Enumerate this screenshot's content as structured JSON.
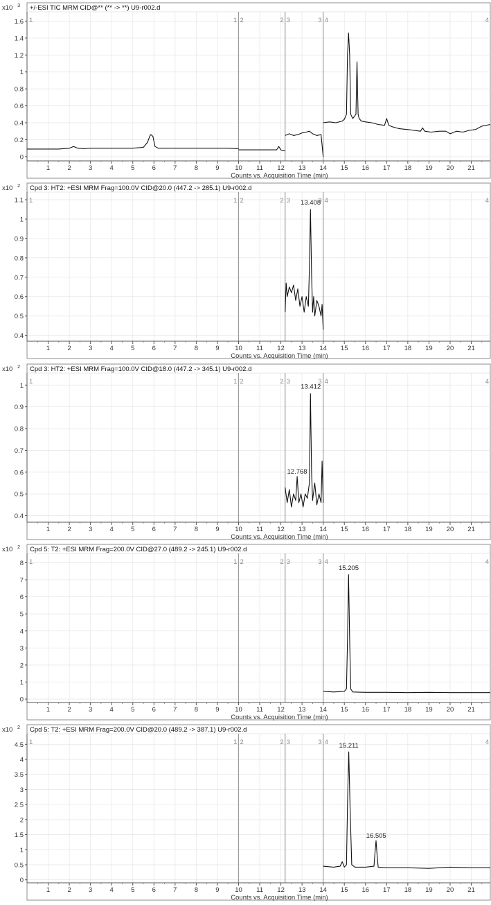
{
  "chart_data": [
    {
      "type": "line",
      "title": "+/-ESI TIC MRM CID@** (** -> **) U9-r002.d",
      "multiplier": "x10",
      "exponent": "3",
      "xlabel": "Counts vs. Acquisition Time (min)",
      "ylabel": "",
      "xlim": [
        0,
        21.9
      ],
      "ylim": [
        -0.05,
        1.62
      ],
      "x_ticks": [
        1,
        2,
        3,
        4,
        5,
        6,
        7,
        8,
        9,
        10,
        11,
        12,
        13,
        14,
        15,
        16,
        17,
        18,
        19,
        20,
        21
      ],
      "x_tick_labels": [
        "1",
        "2",
        "3",
        "4",
        "5",
        "6",
        "7",
        "8",
        "9",
        "10",
        "11",
        "12",
        "13",
        "14",
        "15",
        "16",
        "17",
        "18",
        "19",
        "20",
        "21"
      ],
      "y_ticks": [
        0,
        0.2,
        0.4,
        0.6,
        0.8,
        1,
        1.2,
        1.4,
        1.6
      ],
      "y_tick_labels": [
        "0",
        "0.2",
        "0.4",
        "0.6",
        "0.8",
        "1",
        "1.2",
        "1.4",
        "1.6"
      ],
      "segments": [
        {
          "x": 10.0,
          "left": "1",
          "right": "2"
        },
        {
          "x": 12.2,
          "left": "2",
          "right": "3"
        },
        {
          "x": 14.0,
          "left": "3",
          "right": "4"
        }
      ],
      "edge_labels": {
        "left": "1",
        "right": "4"
      },
      "peak_labels": [],
      "series": [
        {
          "x": [
            0.0,
            1.0,
            1.5,
            2.0,
            2.2,
            2.4,
            2.7,
            3.0,
            4.0,
            5.0,
            5.5,
            5.7,
            5.8,
            5.85,
            5.95,
            6.05,
            6.2,
            6.5,
            7.0,
            7.5,
            8.0,
            8.5,
            9.0,
            9.5,
            10.0
          ],
          "y": [
            0.09,
            0.09,
            0.09,
            0.1,
            0.12,
            0.1,
            0.095,
            0.1,
            0.1,
            0.1,
            0.11,
            0.17,
            0.24,
            0.26,
            0.24,
            0.12,
            0.1,
            0.1,
            0.1,
            0.1,
            0.1,
            0.1,
            0.1,
            0.1,
            0.095
          ]
        },
        {
          "x": [
            10.0,
            10.5,
            11.0,
            11.5,
            11.8,
            11.9,
            12.0,
            12.1,
            12.2
          ],
          "y": [
            0.08,
            0.08,
            0.08,
            0.08,
            0.08,
            0.12,
            0.08,
            0.07,
            0.07
          ]
        },
        {
          "x": [
            12.2,
            12.4,
            12.6,
            12.8,
            13.0,
            13.2,
            13.35,
            13.5,
            13.7,
            13.9,
            14.0
          ],
          "y": [
            0.25,
            0.27,
            0.25,
            0.26,
            0.28,
            0.29,
            0.3,
            0.27,
            0.25,
            0.26,
            0.0
          ]
        },
        {
          "x": [
            14.0,
            14.3,
            14.6,
            14.9,
            15.0,
            15.1,
            15.15,
            15.2,
            15.25,
            15.3,
            15.4,
            15.55,
            15.6,
            15.65,
            15.7,
            15.8,
            16.0,
            16.3,
            16.6,
            16.9,
            17.0,
            17.1,
            17.3,
            17.6,
            18.0,
            18.3,
            18.6,
            18.7,
            18.8,
            19.1,
            19.5,
            19.8,
            20.0,
            20.3,
            20.6,
            20.9,
            21.2,
            21.5,
            21.9
          ],
          "y": [
            0.4,
            0.41,
            0.4,
            0.42,
            0.44,
            0.5,
            1.2,
            1.46,
            1.2,
            0.5,
            0.45,
            0.5,
            1.12,
            0.5,
            0.45,
            0.42,
            0.41,
            0.4,
            0.38,
            0.37,
            0.45,
            0.37,
            0.35,
            0.33,
            0.32,
            0.31,
            0.3,
            0.34,
            0.3,
            0.29,
            0.3,
            0.3,
            0.27,
            0.3,
            0.29,
            0.31,
            0.32,
            0.36,
            0.38
          ]
        }
      ]
    },
    {
      "type": "line",
      "title": "Cpd 3: HT2: +ESI MRM Frag=100.0V CID@20.0 (447.2 -> 285.1) U9-r002.d",
      "multiplier": "x10",
      "exponent": "2",
      "xlabel": "Counts vs. Acquisition Time (min)",
      "ylabel": "",
      "xlim": [
        0,
        21.9
      ],
      "ylim": [
        0.37,
        1.1
      ],
      "x_ticks": [
        1,
        2,
        3,
        4,
        5,
        6,
        7,
        8,
        9,
        10,
        11,
        12,
        13,
        14,
        15,
        16,
        17,
        18,
        19,
        20,
        21
      ],
      "x_tick_labels": [
        "1",
        "2",
        "3",
        "4",
        "5",
        "6",
        "7",
        "8",
        "9",
        "10",
        "11",
        "12",
        "13",
        "14",
        "15",
        "16",
        "17",
        "18",
        "19",
        "20",
        "21"
      ],
      "y_ticks": [
        0.4,
        0.5,
        0.6,
        0.7,
        0.8,
        0.9,
        1,
        1.1
      ],
      "y_tick_labels": [
        "0.4",
        "0.5",
        "0.6",
        "0.7",
        "0.8",
        "0.9",
        "1",
        "1.1"
      ],
      "segments": [
        {
          "x": 10.0,
          "left": "1",
          "right": "2"
        },
        {
          "x": 12.2,
          "left": "2",
          "right": "3"
        },
        {
          "x": 14.0,
          "left": "3",
          "right": "4"
        }
      ],
      "edge_labels": {
        "left": "1",
        "right": "4"
      },
      "peak_labels": [
        {
          "x": 13.408,
          "y": 1.06,
          "text": "13.408"
        }
      ],
      "series": [
        {
          "x": [
            12.2,
            12.25,
            12.3,
            12.4,
            12.5,
            12.6,
            12.7,
            12.8,
            12.9,
            13.0,
            13.1,
            13.2,
            13.3,
            13.35,
            13.4,
            13.45,
            13.5,
            13.55,
            13.6,
            13.7,
            13.8,
            13.9,
            13.95,
            14.0
          ],
          "y": [
            0.52,
            0.67,
            0.6,
            0.65,
            0.62,
            0.66,
            0.58,
            0.64,
            0.55,
            0.6,
            0.52,
            0.6,
            0.55,
            0.75,
            1.05,
            0.72,
            0.52,
            0.6,
            0.5,
            0.58,
            0.55,
            0.5,
            0.56,
            0.43
          ]
        }
      ]
    },
    {
      "type": "line",
      "title": "Cpd 3: HT2: +ESI MRM Frag=100.0V CID@18.0 (447.2 -> 345.1) U9-r002.d",
      "multiplier": "x10",
      "exponent": "2",
      "xlabel": "Counts vs. Acquisition Time (min)",
      "ylabel": "",
      "xlim": [
        0,
        21.9
      ],
      "ylim": [
        0.37,
        1.02
      ],
      "x_ticks": [
        1,
        2,
        3,
        4,
        5,
        6,
        7,
        8,
        9,
        10,
        11,
        12,
        13,
        14,
        15,
        16,
        17,
        18,
        19,
        20,
        21
      ],
      "x_tick_labels": [
        "1",
        "2",
        "3",
        "4",
        "5",
        "6",
        "7",
        "8",
        "9",
        "10",
        "11",
        "12",
        "13",
        "14",
        "15",
        "16",
        "17",
        "18",
        "19",
        "20",
        "21"
      ],
      "y_ticks": [
        0.4,
        0.5,
        0.6,
        0.7,
        0.8,
        0.9,
        1
      ],
      "y_tick_labels": [
        "0.4",
        "0.5",
        "0.6",
        "0.7",
        "0.8",
        "0.9",
        "1"
      ],
      "segments": [
        {
          "x": 10.0,
          "left": "1",
          "right": "2"
        },
        {
          "x": 12.2,
          "left": "2",
          "right": "3"
        },
        {
          "x": 14.0,
          "left": "3",
          "right": "4"
        }
      ],
      "edge_labels": {
        "left": "1",
        "right": "4"
      },
      "peak_labels": [
        {
          "x": 12.768,
          "y": 0.58,
          "text": "12.768"
        },
        {
          "x": 13.412,
          "y": 0.97,
          "text": "13.412"
        }
      ],
      "series": [
        {
          "x": [
            12.2,
            12.3,
            12.4,
            12.5,
            12.6,
            12.7,
            12.77,
            12.85,
            12.95,
            13.05,
            13.15,
            13.25,
            13.35,
            13.4,
            13.45,
            13.5,
            13.6,
            13.7,
            13.8,
            13.9,
            13.95,
            14.0
          ],
          "y": [
            0.53,
            0.46,
            0.52,
            0.44,
            0.5,
            0.47,
            0.58,
            0.46,
            0.5,
            0.44,
            0.5,
            0.48,
            0.55,
            0.96,
            0.6,
            0.47,
            0.55,
            0.45,
            0.5,
            0.46,
            0.65,
            0.46
          ]
        }
      ]
    },
    {
      "type": "line",
      "title": "Cpd 5: T2: +ESI MRM Frag=200.0V CID@27.0 (489.2 -> 245.1) U9-r002.d",
      "multiplier": "x10",
      "exponent": "2",
      "xlabel": "Counts vs. Acquisition Time (min)",
      "ylabel": "",
      "xlim": [
        0,
        21.9
      ],
      "ylim": [
        -0.2,
        8.1
      ],
      "x_ticks": [
        1,
        2,
        3,
        4,
        5,
        6,
        7,
        8,
        9,
        10,
        11,
        12,
        13,
        14,
        15,
        16,
        17,
        18,
        19,
        20,
        21
      ],
      "x_tick_labels": [
        "1",
        "2",
        "3",
        "4",
        "5",
        "6",
        "7",
        "8",
        "9",
        "10",
        "11",
        "12",
        "13",
        "14",
        "15",
        "16",
        "17",
        "18",
        "19",
        "20",
        "21"
      ],
      "y_ticks": [
        0,
        1,
        2,
        3,
        4,
        5,
        6,
        7,
        8
      ],
      "y_tick_labels": [
        "0",
        "1",
        "2",
        "3",
        "4",
        "5",
        "6",
        "7",
        "8"
      ],
      "segments": [
        {
          "x": 10.0,
          "left": "1",
          "right": "2"
        },
        {
          "x": 12.2,
          "left": "2",
          "right": "3"
        },
        {
          "x": 14.0,
          "left": "3",
          "right": "4"
        }
      ],
      "edge_labels": {
        "left": "1",
        "right": "4"
      },
      "peak_labels": [
        {
          "x": 15.205,
          "y": 7.4,
          "text": "15.205"
        }
      ],
      "series": [
        {
          "x": [
            14.0,
            14.5,
            15.0,
            15.1,
            15.15,
            15.2,
            15.25,
            15.3,
            15.4,
            16.0,
            17.0,
            18.0,
            19.0,
            20.0,
            21.0,
            21.9
          ],
          "y": [
            0.45,
            0.42,
            0.45,
            0.6,
            3.5,
            7.3,
            3.5,
            0.6,
            0.42,
            0.4,
            0.4,
            0.38,
            0.4,
            0.38,
            0.38,
            0.38
          ]
        }
      ]
    },
    {
      "type": "line",
      "title": "Cpd 5: T2: +ESI MRM Frag=200.0V CID@20.0 (489.2 -> 387.1) U9-r002.d",
      "multiplier": "x10",
      "exponent": "2",
      "xlabel": "Counts vs. Acquisition Time (min)",
      "ylabel": "",
      "xlim": [
        0,
        21.9
      ],
      "ylim": [
        -0.1,
        4.6
      ],
      "x_ticks": [
        1,
        2,
        3,
        4,
        5,
        6,
        7,
        8,
        9,
        10,
        11,
        12,
        13,
        14,
        15,
        16,
        17,
        18,
        19,
        20,
        21
      ],
      "x_tick_labels": [
        "1",
        "2",
        "3",
        "4",
        "5",
        "6",
        "7",
        "8",
        "9",
        "10",
        "11",
        "12",
        "13",
        "14",
        "15",
        "16",
        "17",
        "18",
        "19",
        "20",
        "21"
      ],
      "y_ticks": [
        0,
        0.5,
        1,
        1.5,
        2,
        2.5,
        3,
        3.5,
        4,
        4.5
      ],
      "y_tick_labels": [
        "0",
        "0.5",
        "1",
        "1.5",
        "2",
        "2.5",
        "3",
        "3.5",
        "4",
        "4.5"
      ],
      "segments": [
        {
          "x": 10.0,
          "left": "1",
          "right": "2"
        },
        {
          "x": 12.2,
          "left": "2",
          "right": "3"
        },
        {
          "x": 14.0,
          "left": "3",
          "right": "4"
        }
      ],
      "edge_labels": {
        "left": "1",
        "right": "4"
      },
      "peak_labels": [
        {
          "x": 15.211,
          "y": 4.3,
          "text": "15.211"
        },
        {
          "x": 16.505,
          "y": 1.3,
          "text": "16.505"
        }
      ],
      "series": [
        {
          "x": [
            14.0,
            14.5,
            14.8,
            14.9,
            15.0,
            15.1,
            15.15,
            15.21,
            15.27,
            15.35,
            15.5,
            16.0,
            16.4,
            16.45,
            16.5,
            16.55,
            16.6,
            17.0,
            18.0,
            19.0,
            20.0,
            21.0,
            21.9
          ],
          "y": [
            0.45,
            0.42,
            0.45,
            0.6,
            0.42,
            0.5,
            2.5,
            4.25,
            2.4,
            0.5,
            0.42,
            0.42,
            0.45,
            0.9,
            1.3,
            0.8,
            0.42,
            0.4,
            0.4,
            0.38,
            0.42,
            0.4,
            0.4
          ]
        }
      ]
    }
  ]
}
